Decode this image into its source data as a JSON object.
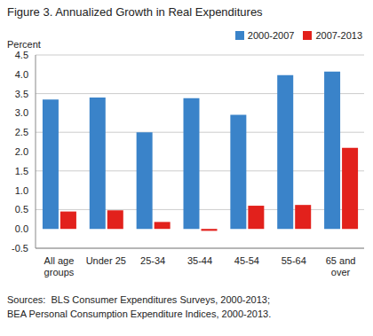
{
  "chart_data": {
    "type": "bar",
    "title": "Figure 3. Annualized Growth in Real Expenditures",
    "y_label": "Percent",
    "categories": [
      "All age groups",
      "Under 25",
      "25-34",
      "35-44",
      "45-54",
      "55-64",
      "65 and over"
    ],
    "series": [
      {
        "name": "2000-2007",
        "color": "#3a83c9",
        "values": [
          3.35,
          3.4,
          2.5,
          3.38,
          2.95,
          3.98,
          4.07
        ]
      },
      {
        "name": "2007-2013",
        "color": "#e2211c",
        "values": [
          0.45,
          0.48,
          0.18,
          -0.05,
          0.6,
          0.62,
          2.1
        ]
      }
    ],
    "ylim": [
      -0.5,
      4.5
    ],
    "yticks": [
      -0.5,
      {
        "value": 0,
        "label": "0.0"
      },
      0.5,
      {
        "value": 1,
        "label": "1.0"
      },
      1.5,
      {
        "value": 2,
        "label": "2.0"
      },
      2.5,
      {
        "value": 3,
        "label": "3.0"
      },
      3.5,
      {
        "value": 4,
        "label": "4.0"
      },
      4.5
    ],
    "grid": true,
    "legend": "upper right",
    "source": [
      "Sources:  BLS Consumer Expenditures Surveys, 2000-2013;",
      "BEA Personal Consumption Expenditure Indices, 2000-2013."
    ]
  }
}
